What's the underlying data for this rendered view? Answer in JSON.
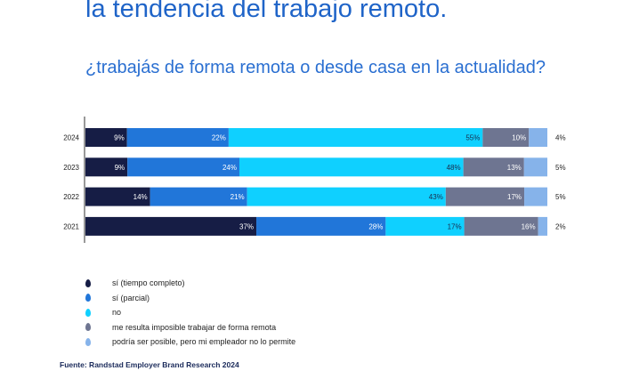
{
  "title": "la tendencia del trabajo remoto.",
  "subtitle": "¿trabajás de forma remota o desde casa en la actualidad?",
  "source": "Fuente: Randstad Employer Brand Research 2024",
  "legend": [
    {
      "label": "sí (tiempo completo)",
      "color": "#161d45"
    },
    {
      "label": "sí (parcial)",
      "color": "#2176d9"
    },
    {
      "label": "no",
      "color": "#0fd0ff"
    },
    {
      "label": "me resulta imposible trabajar de forma remota",
      "color": "#6e7591"
    },
    {
      "label": "podría ser posible, pero mi empleador no lo permite",
      "color": "#86b3ea"
    }
  ],
  "chart_data": {
    "type": "bar",
    "stacked": true,
    "orientation": "horizontal",
    "percent_stacked": true,
    "categories": [
      "2024",
      "2023",
      "2022",
      "2021"
    ],
    "series": [
      {
        "name": "sí (tiempo completo)",
        "color": "#161d45",
        "values": [
          9,
          9,
          14,
          37
        ],
        "labels": [
          "9%",
          "9%",
          "14%",
          "37%"
        ]
      },
      {
        "name": "sí (parcial)",
        "color": "#2176d9",
        "values": [
          22,
          24,
          21,
          28
        ],
        "labels": [
          "22%",
          "24%",
          "21%",
          "28%"
        ]
      },
      {
        "name": "no",
        "color": "#0fd0ff",
        "values": [
          55,
          48,
          43,
          17
        ],
        "labels": [
          "55%",
          "48%",
          "43%",
          "17%"
        ]
      },
      {
        "name": "me resulta imposible trabajar de forma remota",
        "color": "#6e7591",
        "values": [
          10,
          13,
          17,
          16
        ],
        "labels": [
          "10%",
          "13%",
          "17%",
          "16%"
        ]
      },
      {
        "name": "podría ser posible, pero mi empleador no lo permite",
        "color": "#86b3ea",
        "values": [
          4,
          5,
          5,
          2
        ],
        "labels": [
          "4%",
          "5%",
          "5%",
          "2%"
        ]
      }
    ],
    "legend_position": "bottom-left",
    "grid": false
  }
}
